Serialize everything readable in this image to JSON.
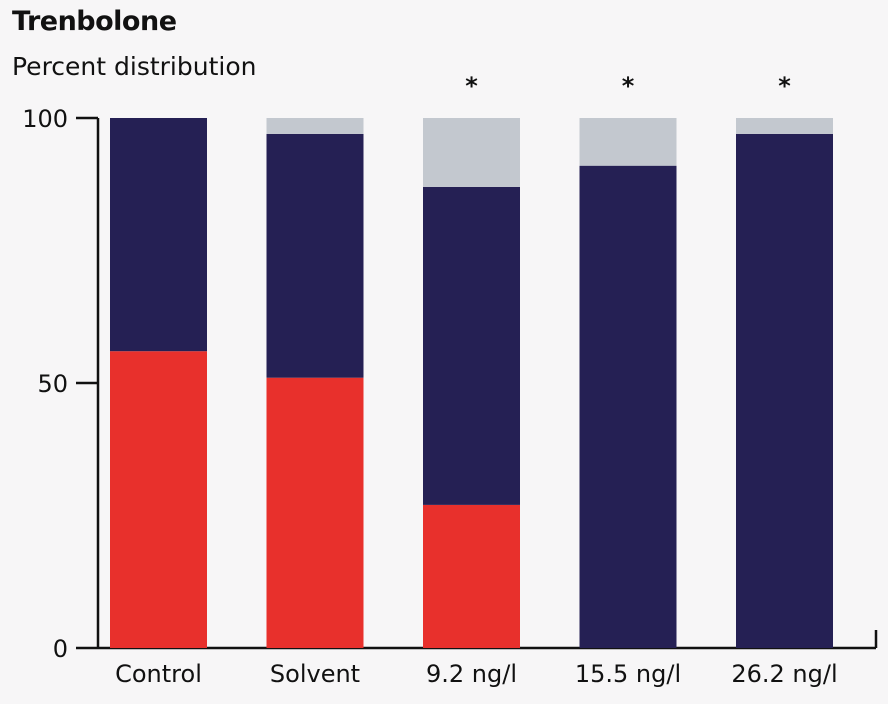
{
  "chart_data": {
    "type": "bar",
    "stacked": true,
    "title": "Trenbolone",
    "subtitle": "Percent distribution",
    "categories": [
      "Control",
      "Solvent",
      "9.2 ng/l",
      "15.5 ng/l",
      "26.2 ng/l"
    ],
    "series": [
      {
        "color": "#e8302c",
        "values": [
          56,
          51,
          27,
          0,
          0
        ]
      },
      {
        "color": "#252054",
        "values": [
          44,
          46,
          60,
          91,
          97
        ]
      },
      {
        "color": "#c3c8cf",
        "values": [
          0,
          3,
          13,
          9,
          3
        ]
      }
    ],
    "significance": [
      "",
      "",
      "*",
      "*",
      "*"
    ],
    "ylim": [
      0,
      100
    ],
    "yticks": [
      0,
      50,
      100
    ],
    "grid": false,
    "legend": "none"
  }
}
